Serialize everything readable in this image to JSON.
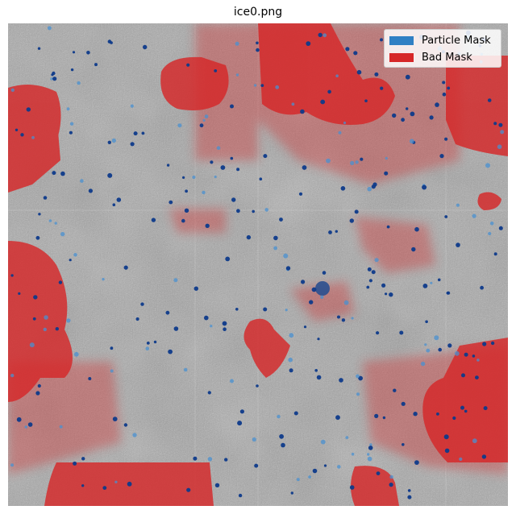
{
  "figure": {
    "title": "ice0.png"
  },
  "legend": {
    "items": [
      {
        "label": "Particle Mask",
        "color": "#2f80c4"
      },
      {
        "label": "Bad Mask",
        "color": "#d62728"
      }
    ]
  },
  "colors": {
    "background_gray": "#9a9a9a",
    "particle": "#1f4f9e",
    "bad": "#d62728"
  }
}
